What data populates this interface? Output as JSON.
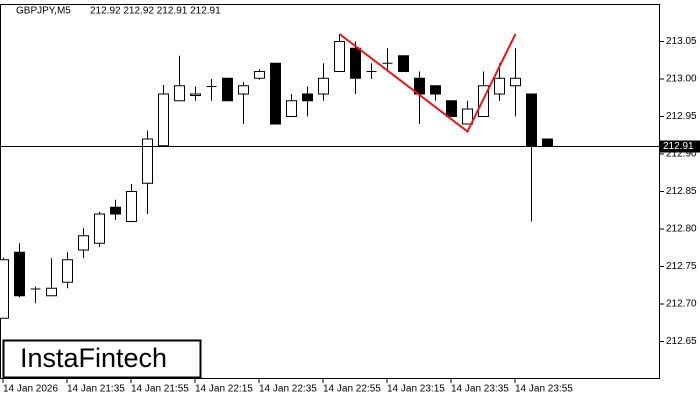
{
  "chart_data": {
    "type": "candlestick",
    "title": "GBPJPY,M5",
    "subtitle": "212.92 212.92 212.91 212.91",
    "logo": "InstaFintech",
    "categories": [
      "14 Jan 2026",
      null,
      null,
      null,
      "14 Jan 21:35",
      null,
      null,
      null,
      "14 Jan 21:55",
      null,
      null,
      null,
      "14 Jan 22:15",
      null,
      null,
      null,
      "14 Jan 22:35",
      null,
      null,
      null,
      "14 Jan 22:55",
      null,
      null,
      null,
      "14 Jan 23:15",
      null,
      null,
      null,
      "14 Jan 23:35",
      null,
      null,
      null,
      "14 Jan 23:55",
      null,
      null
    ],
    "open": [
      212.681,
      212.769,
      212.72,
      212.711,
      212.729,
      212.772,
      212.781,
      212.829,
      212.81,
      212.861,
      212.911,
      212.971,
      212.978,
      212.99,
      213.001,
      212.98,
      213.001,
      213.021,
      212.95,
      212.98,
      212.98,
      213.01,
      213.041,
      213.01,
      213.021,
      213.031,
      213.001,
      212.991,
      212.971,
      212.94,
      212.95,
      212.98,
      212.991,
      212.98,
      212.92
    ],
    "high": [
      212.762,
      212.781,
      212.723,
      212.761,
      212.769,
      212.801,
      212.823,
      212.839,
      212.86,
      212.931,
      212.992,
      213.031,
      212.99,
      213.0,
      213.001,
      212.996,
      213.013,
      213.021,
      212.98,
      212.99,
      213.021,
      213.06,
      213.05,
      213.021,
      213.041,
      213.031,
      213.01,
      212.991,
      212.971,
      212.971,
      213.01,
      213.021,
      213.041,
      212.98,
      212.92
    ],
    "low": [
      212.681,
      212.709,
      212.701,
      212.711,
      212.721,
      212.761,
      212.776,
      212.812,
      212.809,
      212.82,
      212.911,
      212.971,
      212.971,
      212.971,
      212.971,
      212.94,
      212.999,
      212.94,
      212.95,
      212.95,
      212.971,
      213.01,
      212.98,
      213.0,
      213.01,
      213.01,
      212.94,
      212.971,
      212.95,
      212.94,
      212.95,
      212.971,
      212.95,
      212.81,
      212.91
    ],
    "close": [
      212.759,
      212.711,
      212.72,
      212.721,
      212.759,
      212.791,
      212.82,
      212.82,
      212.85,
      212.92,
      212.98,
      212.991,
      212.98,
      212.99,
      212.971,
      212.991,
      213.01,
      212.94,
      212.971,
      212.971,
      213.001,
      213.05,
      213.001,
      213.01,
      213.021,
      213.01,
      212.98,
      212.98,
      212.95,
      212.96,
      212.991,
      213.001,
      213.001,
      212.91,
      212.91
    ],
    "pattern": {
      "color": "#e8141e",
      "x": [
        21,
        29,
        32
      ],
      "values": [
        213.06,
        212.93,
        213.06
      ]
    },
    "last_price": 212.91,
    "ylim": [
      212.6,
      213.1
    ],
    "yticks": [
      212.65,
      {
        "value": 212.7,
        "label": "212.70"
      },
      212.75,
      {
        "value": 212.8,
        "label": "212.80"
      },
      212.85,
      {
        "value": 212.9,
        "label": "212.90"
      },
      212.95,
      {
        "value": 213,
        "label": "213.00"
      },
      213.05
    ]
  }
}
